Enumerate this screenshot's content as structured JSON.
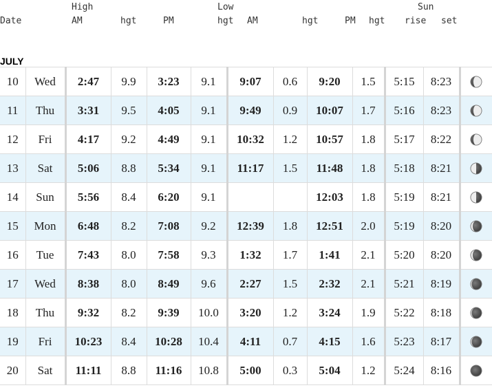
{
  "header": {
    "high": "High",
    "low": "Low",
    "sun": "Sun",
    "date": "Date",
    "high_am": "AM",
    "high_am_hgt": "hgt",
    "high_pm": "PM",
    "low_hgt": "hgt",
    "low_am": "AM",
    "low_am_hgt": "hgt",
    "low_pm": "PM",
    "low_pm_hgt": "hgt",
    "sun_rise": "rise",
    "sun_set": "set"
  },
  "month": "JULY",
  "rows": [
    {
      "day": "10",
      "dow": "Wed",
      "high_am": "2:47",
      "high_am_hgt": "9.9",
      "high_pm": "3:23",
      "high_pm_hgt": "9.1",
      "low_am": "9:07",
      "low_am_hgt": "0.6",
      "low_pm": "9:20",
      "low_pm_hgt": "1.5",
      "sunrise": "5:15",
      "sunset": "8:23",
      "moon": "waning-gibbous-icon"
    },
    {
      "day": "11",
      "dow": "Thu",
      "high_am": "3:31",
      "high_am_hgt": "9.5",
      "high_pm": "4:05",
      "high_pm_hgt": "9.1",
      "low_am": "9:49",
      "low_am_hgt": "0.9",
      "low_pm": "10:07",
      "low_pm_hgt": "1.7",
      "sunrise": "5:16",
      "sunset": "8:23",
      "moon": "waning-gibbous-icon"
    },
    {
      "day": "12",
      "dow": "Fri",
      "high_am": "4:17",
      "high_am_hgt": "9.2",
      "high_pm": "4:49",
      "high_pm_hgt": "9.1",
      "low_am": "10:32",
      "low_am_hgt": "1.2",
      "low_pm": "10:57",
      "low_pm_hgt": "1.8",
      "sunrise": "5:17",
      "sunset": "8:22",
      "moon": "waning-gibbous-icon"
    },
    {
      "day": "13",
      "dow": "Sat",
      "high_am": "5:06",
      "high_am_hgt": "8.8",
      "high_pm": "5:34",
      "high_pm_hgt": "9.1",
      "low_am": "11:17",
      "low_am_hgt": "1.5",
      "low_pm": "11:48",
      "low_pm_hgt": "1.8",
      "sunrise": "5:18",
      "sunset": "8:21",
      "moon": "third-quarter-icon"
    },
    {
      "day": "14",
      "dow": "Sun",
      "high_am": "5:56",
      "high_am_hgt": "8.4",
      "high_pm": "6:20",
      "high_pm_hgt": "9.1",
      "low_am": "",
      "low_am_hgt": "",
      "low_pm": "12:03",
      "low_pm_hgt": "1.8",
      "sunrise": "5:19",
      "sunset": "8:21",
      "moon": "third-quarter-icon"
    },
    {
      "day": "15",
      "dow": "Mon",
      "high_am": "6:48",
      "high_am_hgt": "8.2",
      "high_pm": "7:08",
      "high_pm_hgt": "9.2",
      "low_am": "12:39",
      "low_am_hgt": "1.8",
      "low_pm": "12:51",
      "low_pm_hgt": "2.0",
      "sunrise": "5:19",
      "sunset": "8:20",
      "moon": "waning-crescent-icon"
    },
    {
      "day": "16",
      "dow": "Tue",
      "high_am": "7:43",
      "high_am_hgt": "8.0",
      "high_pm": "7:58",
      "high_pm_hgt": "9.3",
      "low_am": "1:32",
      "low_am_hgt": "1.7",
      "low_pm": "1:41",
      "low_pm_hgt": "2.1",
      "sunrise": "5:20",
      "sunset": "8:20",
      "moon": "waning-crescent-icon"
    },
    {
      "day": "17",
      "dow": "Wed",
      "high_am": "8:38",
      "high_am_hgt": "8.0",
      "high_pm": "8:49",
      "high_pm_hgt": "9.6",
      "low_am": "2:27",
      "low_am_hgt": "1.5",
      "low_pm": "2:32",
      "low_pm_hgt": "2.1",
      "sunrise": "5:21",
      "sunset": "8:19",
      "moon": "crescent-icon"
    },
    {
      "day": "18",
      "dow": "Thu",
      "high_am": "9:32",
      "high_am_hgt": "8.2",
      "high_pm": "9:39",
      "high_pm_hgt": "10.0",
      "low_am": "3:20",
      "low_am_hgt": "1.2",
      "low_pm": "3:24",
      "low_pm_hgt": "1.9",
      "sunrise": "5:22",
      "sunset": "8:18",
      "moon": "crescent-icon"
    },
    {
      "day": "19",
      "dow": "Fri",
      "high_am": "10:23",
      "high_am_hgt": "8.4",
      "high_pm": "10:28",
      "high_pm_hgt": "10.4",
      "low_am": "4:11",
      "low_am_hgt": "0.7",
      "low_pm": "4:15",
      "low_pm_hgt": "1.6",
      "sunrise": "5:23",
      "sunset": "8:17",
      "moon": "crescent-icon"
    },
    {
      "day": "20",
      "dow": "Sat",
      "high_am": "11:11",
      "high_am_hgt": "8.8",
      "high_pm": "11:16",
      "high_pm_hgt": "10.8",
      "low_am": "5:00",
      "low_am_hgt": "0.3",
      "low_pm": "5:04",
      "low_pm_hgt": "1.2",
      "sunrise": "5:24",
      "sunset": "8:16",
      "moon": "new-moon-icon"
    }
  ]
}
